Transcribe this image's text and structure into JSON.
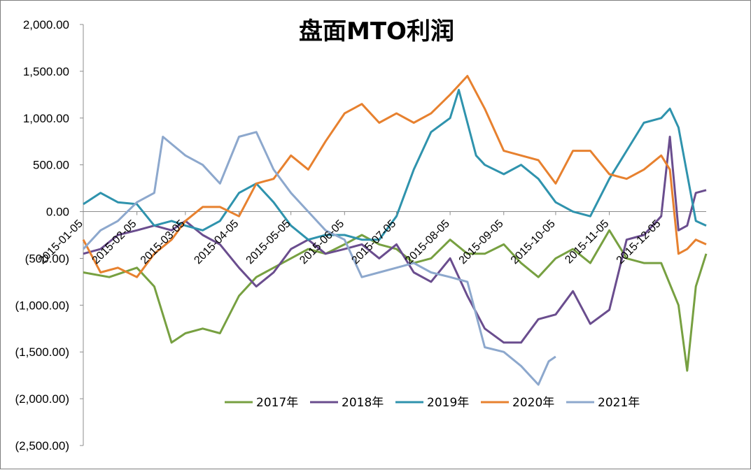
{
  "chart_data": {
    "type": "line",
    "title": "盘面MTO利润",
    "xlabel": "",
    "ylabel": "",
    "ylim": [
      -2500,
      2000
    ],
    "y_ticks": [
      2000,
      1500,
      1000,
      500,
      0,
      -500,
      -1000,
      -1500,
      -2000,
      -2500
    ],
    "y_tick_labels": [
      "2,000.00",
      "1,500.00",
      "1,000.00",
      "500.00",
      "0.00",
      "(500.00)",
      "(1,000.00)",
      "(1,500.00)",
      "(2,000.00)",
      "(2,500.00)"
    ],
    "x_tick_labels": [
      "2015-01-05",
      "2015-02-05",
      "2015-03-05",
      "2015-04-05",
      "2015-05-05",
      "2015-06-05",
      "2015-07-05",
      "2015-08-05",
      "2015-09-05",
      "2015-10-05",
      "2015-11-05",
      "2015-12-05"
    ],
    "legend_position": "bottom",
    "grid": false,
    "series": [
      {
        "name": "2017年",
        "color": "#77a041",
        "x": [
          "2015-01-05",
          "2015-01-20",
          "2015-02-05",
          "2015-02-15",
          "2015-02-25",
          "2015-03-05",
          "2015-03-15",
          "2015-03-25",
          "2015-04-05",
          "2015-04-15",
          "2015-04-25",
          "2015-05-05",
          "2015-05-15",
          "2015-05-25",
          "2015-06-05",
          "2015-06-15",
          "2015-06-25",
          "2015-07-05",
          "2015-07-15",
          "2015-07-25",
          "2015-08-05",
          "2015-08-15",
          "2015-08-25",
          "2015-09-05",
          "2015-09-15",
          "2015-09-25",
          "2015-10-05",
          "2015-10-15",
          "2015-10-25",
          "2015-11-05",
          "2015-11-15",
          "2015-11-25",
          "2015-12-05",
          "2015-12-15",
          "2015-12-20",
          "2015-12-25",
          "2015-12-31"
        ],
        "values": [
          -650,
          -700,
          -600,
          -800,
          -1400,
          -1300,
          -1250,
          -1300,
          -900,
          -700,
          -600,
          -500,
          -400,
          -450,
          -350,
          -250,
          -350,
          -400,
          -550,
          -500,
          -300,
          -450,
          -450,
          -350,
          -550,
          -700,
          -500,
          -400,
          -550,
          -200,
          -500,
          -550,
          -550,
          -1000,
          -1700,
          -800,
          -450
        ]
      },
      {
        "name": "2018年",
        "color": "#6a4d8e",
        "x": [
          "2015-01-05",
          "2015-01-15",
          "2015-01-25",
          "2015-02-05",
          "2015-02-15",
          "2015-02-25",
          "2015-03-05",
          "2015-03-15",
          "2015-03-25",
          "2015-04-05",
          "2015-04-15",
          "2015-04-25",
          "2015-05-05",
          "2015-05-15",
          "2015-05-25",
          "2015-06-05",
          "2015-06-15",
          "2015-06-25",
          "2015-07-05",
          "2015-07-15",
          "2015-07-25",
          "2015-08-05",
          "2015-08-15",
          "2015-08-25",
          "2015-09-05",
          "2015-09-15",
          "2015-09-25",
          "2015-10-05",
          "2015-10-15",
          "2015-10-25",
          "2015-11-05",
          "2015-11-15",
          "2015-11-25",
          "2015-12-05",
          "2015-12-10",
          "2015-12-15",
          "2015-12-20",
          "2015-12-25",
          "2015-12-31"
        ],
        "values": [
          -450,
          -400,
          -250,
          -200,
          -150,
          -200,
          -100,
          -250,
          -350,
          -600,
          -800,
          -650,
          -400,
          -300,
          -450,
          -400,
          -350,
          -500,
          -350,
          -650,
          -750,
          -500,
          -900,
          -1250,
          -1400,
          -1400,
          -1150,
          -1100,
          -850,
          -1200,
          -1050,
          -300,
          -250,
          -50,
          800,
          -200,
          -150,
          200,
          230
        ]
      },
      {
        "name": "2019年",
        "color": "#2f93ad",
        "x": [
          "2015-01-05",
          "2015-01-15",
          "2015-01-25",
          "2015-02-05",
          "2015-02-15",
          "2015-02-25",
          "2015-03-05",
          "2015-03-15",
          "2015-03-25",
          "2015-04-05",
          "2015-04-15",
          "2015-04-25",
          "2015-05-05",
          "2015-05-15",
          "2015-05-25",
          "2015-06-05",
          "2015-06-15",
          "2015-06-25",
          "2015-07-05",
          "2015-07-15",
          "2015-07-25",
          "2015-08-05",
          "2015-08-10",
          "2015-08-20",
          "2015-08-25",
          "2015-09-05",
          "2015-09-15",
          "2015-09-25",
          "2015-10-05",
          "2015-10-15",
          "2015-10-25",
          "2015-11-05",
          "2015-11-15",
          "2015-11-25",
          "2015-12-05",
          "2015-12-10",
          "2015-12-15",
          "2015-12-20",
          "2015-12-25",
          "2015-12-31"
        ],
        "values": [
          80,
          200,
          100,
          80,
          -150,
          -100,
          -150,
          -200,
          -100,
          200,
          300,
          100,
          -150,
          -300,
          -250,
          -250,
          -300,
          -300,
          -50,
          450,
          850,
          1000,
          1300,
          600,
          500,
          400,
          500,
          350,
          100,
          0,
          -50,
          350,
          650,
          950,
          1000,
          1100,
          900,
          400,
          -100,
          -150
        ]
      },
      {
        "name": "2020年",
        "color": "#e7812f",
        "x": [
          "2015-01-05",
          "2015-01-15",
          "2015-01-25",
          "2015-02-05",
          "2015-02-15",
          "2015-02-25",
          "2015-03-05",
          "2015-03-15",
          "2015-03-25",
          "2015-04-05",
          "2015-04-15",
          "2015-04-25",
          "2015-05-05",
          "2015-05-15",
          "2015-05-25",
          "2015-06-05",
          "2015-06-15",
          "2015-06-25",
          "2015-07-05",
          "2015-07-15",
          "2015-07-25",
          "2015-08-05",
          "2015-08-15",
          "2015-08-25",
          "2015-09-05",
          "2015-09-15",
          "2015-09-25",
          "2015-10-05",
          "2015-10-15",
          "2015-10-25",
          "2015-11-05",
          "2015-11-15",
          "2015-11-25",
          "2015-12-05",
          "2015-12-10",
          "2015-12-15",
          "2015-12-20",
          "2015-12-25",
          "2015-12-31"
        ],
        "values": [
          -300,
          -650,
          -600,
          -700,
          -450,
          -300,
          -100,
          50,
          50,
          -50,
          300,
          350,
          600,
          450,
          750,
          1050,
          1150,
          950,
          1050,
          950,
          1050,
          1250,
          1450,
          1100,
          650,
          600,
          550,
          300,
          650,
          650,
          400,
          350,
          450,
          600,
          450,
          -450,
          -400,
          -300,
          -350
        ]
      },
      {
        "name": "2021年",
        "color": "#8da8cd",
        "x": [
          "2015-01-05",
          "2015-01-15",
          "2015-01-25",
          "2015-02-05",
          "2015-02-15",
          "2015-02-20",
          "2015-03-05",
          "2015-03-15",
          "2015-03-25",
          "2015-04-05",
          "2015-04-15",
          "2015-04-25",
          "2015-05-05",
          "2015-05-15",
          "2015-05-25",
          "2015-06-05",
          "2015-06-15",
          "2015-06-25",
          "2015-07-05",
          "2015-07-15",
          "2015-07-25",
          "2015-08-05",
          "2015-08-15",
          "2015-08-25",
          "2015-09-05",
          "2015-09-15",
          "2015-09-25",
          "2015-10-01",
          "2015-10-05"
        ],
        "values": [
          -400,
          -200,
          -100,
          100,
          200,
          800,
          600,
          500,
          300,
          800,
          850,
          450,
          200,
          0,
          -200,
          -300,
          -700,
          -650,
          -600,
          -550,
          -650,
          -700,
          -750,
          -1450,
          -1500,
          -1650,
          -1850,
          -1600,
          -1550
        ]
      }
    ]
  }
}
